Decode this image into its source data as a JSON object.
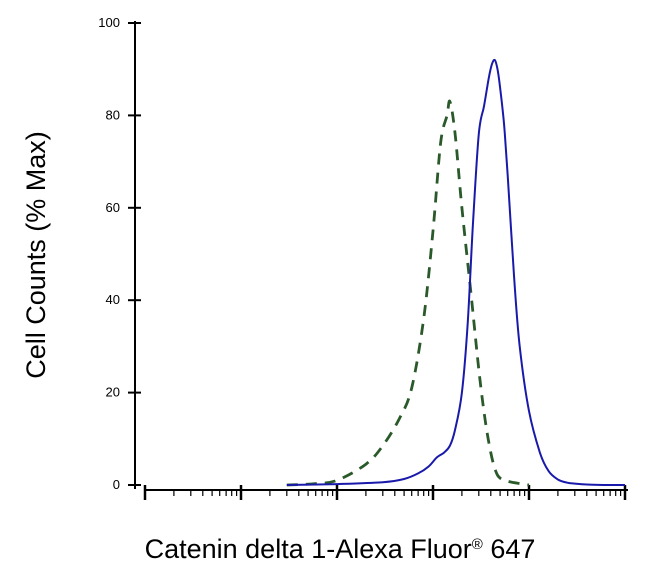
{
  "chart_data": {
    "type": "line",
    "title": "",
    "xlabel": "Catenin delta 1-Alexa Fluor",
    "xlabel_superscript": "®",
    "xlabel_suffix": " 647",
    "ylabel": "Cell Counts (% Max)",
    "x_scale": "log",
    "xlim": [
      1,
      100000
    ],
    "ylim": [
      0,
      100
    ],
    "y_ticks": [
      0,
      20,
      40,
      60,
      80,
      100
    ],
    "y_tick_labels": [
      "0",
      "20",
      "40",
      "60",
      "80",
      "100"
    ],
    "x_tick_labels": [],
    "grid": false,
    "legend": "none",
    "series": [
      {
        "color": "#2a5a2a",
        "dash": true,
        "x": [
          30,
          60,
          100,
          200,
          300,
          450,
          600,
          800,
          1000,
          1200,
          1400,
          1500,
          1700,
          2000,
          2500,
          3000,
          3500,
          4000,
          4500,
          5000,
          6000,
          8000,
          10000
        ],
        "y": [
          0,
          0.3,
          1,
          4.5,
          8.5,
          14.5,
          21,
          36,
          55,
          74,
          80,
          83,
          76,
          60,
          41,
          25,
          14,
          7,
          3,
          1.5,
          0.8,
          0.3,
          0
        ]
      },
      {
        "color": "#1a1aaa",
        "dash": false,
        "x": [
          30,
          100,
          300,
          500,
          700,
          900,
          1100,
          1300,
          1500,
          1700,
          2000,
          2300,
          2600,
          3000,
          3400,
          3800,
          4100,
          4400,
          4700,
          5000,
          5500,
          6000,
          7000,
          8000,
          10000,
          13000,
          16000,
          20000,
          25000,
          30000,
          40000,
          60000,
          100000
        ],
        "y": [
          0,
          0.2,
          0.6,
          1.3,
          2.5,
          4,
          6,
          7,
          8.5,
          12,
          20,
          35,
          56,
          76,
          82,
          88,
          91,
          92,
          90,
          86,
          78,
          67,
          45,
          30,
          16,
          7,
          3,
          1.2,
          0.5,
          0.3,
          0.1,
          0,
          0
        ]
      }
    ]
  }
}
